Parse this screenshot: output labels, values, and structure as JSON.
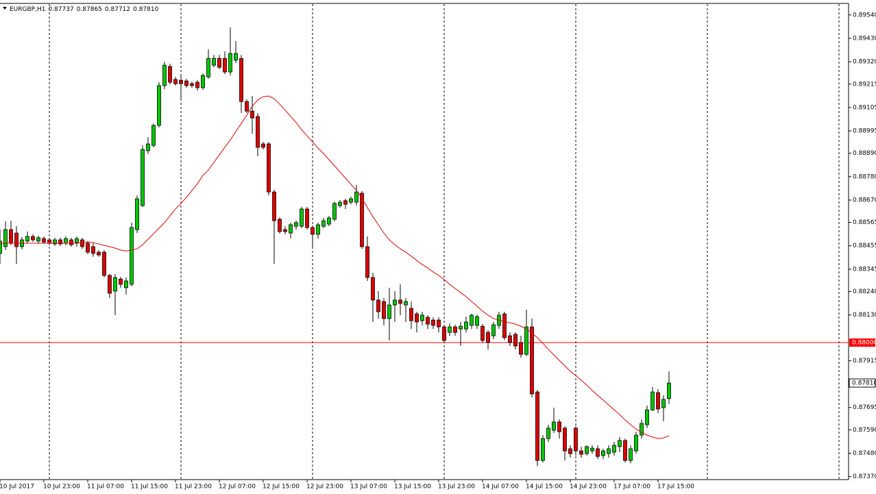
{
  "chart_data": {
    "type": "candlestick",
    "title": "EURGBP,H1",
    "header_values": [
      0.87737,
      0.87865,
      0.87712,
      {
        "value": 0.8781,
        "label": "0.87810"
      }
    ],
    "categories": [
      "10 Jul 2017",
      null,
      null,
      null,
      null,
      null,
      null,
      null,
      "10 Jul 23:00",
      null,
      null,
      null,
      null,
      null,
      null,
      null,
      "11 Jul 07:00",
      null,
      null,
      null,
      null,
      null,
      null,
      null,
      "11 Jul 15:00",
      null,
      null,
      null,
      null,
      null,
      null,
      null,
      "11 Jul 23:00",
      null,
      null,
      null,
      null,
      null,
      null,
      null,
      "12 Jul 07:00",
      null,
      null,
      null,
      null,
      null,
      null,
      null,
      "12 Jul 15:00",
      null,
      null,
      null,
      null,
      null,
      null,
      null,
      "12 Jul 23:00",
      null,
      null,
      null,
      null,
      null,
      null,
      null,
      "13 Jul 07:00",
      null,
      null,
      null,
      null,
      null,
      null,
      null,
      "13 Jul 15:00",
      null,
      null,
      null,
      null,
      null,
      null,
      null,
      "13 Jul 23:00",
      null,
      null,
      null,
      null,
      null,
      null,
      null,
      "14 Jul 07:00",
      null,
      null,
      null,
      null,
      null,
      null,
      null,
      "14 Jul 15:00",
      null,
      null,
      null,
      null,
      null,
      null,
      null,
      "14 Jul 23:00",
      null,
      null,
      null,
      null,
      null,
      null,
      null,
      "17 Jul 07:00",
      null,
      null,
      null,
      null,
      null,
      null,
      null,
      "17 Jul 15:00",
      null,
      null
    ],
    "open": [
      0.88419,
      0.88451,
      0.88531,
      0.88515,
      0.88451,
      0.88477,
      0.88499,
      0.88477,
      0.88489,
      0.88483,
      0.88464,
      0.88483,
      0.88467,
      0.88483,
      0.8847,
      0.88483,
      0.88467,
      0.88451,
      0.88425,
      0.88425,
      0.88316,
      0.88242,
      0.88299,
      0.88258,
      0.88274,
      0.88531,
      0.88644,
      0.88902,
      0.88927,
      0.89021,
      0.89208,
      0.89298,
      0.89237,
      0.89233,
      0.8923,
      0.89217,
      0.89224,
      0.89198,
      0.89249,
      0.89304,
      0.89336,
      0.89336,
      0.89272,
      0.89327,
      0.89336,
      0.89133,
      0.89088,
      0.89063,
      0.88934,
      0.88934,
      0.88708,
      0.8858,
      0.88531,
      0.88515,
      0.88547,
      0.88547,
      0.88628,
      0.88541,
      0.88509,
      0.88547,
      0.88557,
      0.8858,
      0.88644,
      0.88667,
      0.8866,
      0.8866,
      0.88702,
      0.88451,
      0.88306,
      0.882,
      0.88193,
      0.88113,
      0.88177,
      0.882,
      0.88177,
      0.88161,
      0.88135,
      0.88103,
      0.88119,
      0.88106,
      0.88106,
      0.88074,
      0.88048,
      0.88074,
      0.88064,
      0.88064,
      0.88081,
      0.88081,
      0.88077,
      0.88048,
      0.88032,
      0.88081,
      0.88135,
      0.88032,
      0.88039,
      0.88,
      0.87945,
      0.88074,
      0.87768,
      0.87446,
      0.87549,
      0.87588,
      0.87627,
      0.87598,
      0.87501,
      0.87598,
      0.87491,
      0.87478,
      0.87491,
      0.87501,
      0.87469,
      0.87478,
      0.87485,
      0.87511,
      0.8754,
      0.87446,
      0.87491,
      0.87565,
      0.87614,
      0.87684,
      0.87765,
      0.87694,
      0.87737
    ],
    "high": [
      0.88531,
      0.8857,
      0.88573,
      0.88547,
      0.88496,
      0.88522,
      0.88509,
      0.88502,
      0.88499,
      0.88493,
      0.88493,
      0.88493,
      0.88499,
      0.88493,
      0.88499,
      0.88493,
      0.88477,
      0.88467,
      0.88435,
      0.88435,
      0.88322,
      0.88322,
      0.88309,
      0.88306,
      0.88564,
      0.88692,
      0.88927,
      0.88966,
      0.8903,
      0.89224,
      0.8932,
      0.89311,
      0.89249,
      0.89256,
      0.8924,
      0.89227,
      0.89233,
      0.89265,
      0.89378,
      0.89352,
      0.89352,
      0.89369,
      0.89481,
      0.89417,
      0.89352,
      0.89143,
      0.89159,
      0.89079,
      0.88943,
      0.88943,
      0.88718,
      0.88589,
      0.88547,
      0.88564,
      0.88573,
      0.88638,
      0.88638,
      0.88551,
      0.88564,
      0.88586,
      0.88596,
      0.88663,
      0.8867,
      0.88676,
      0.88686,
      0.88741,
      0.88712,
      0.88499,
      0.88328,
      0.88242,
      0.88209,
      0.88258,
      0.88242,
      0.88274,
      0.88209,
      0.88193,
      0.88145,
      0.88145,
      0.88129,
      0.88119,
      0.88119,
      0.88084,
      0.8809,
      0.88084,
      0.88097,
      0.88122,
      0.88135,
      0.88132,
      0.88087,
      0.88058,
      0.88097,
      0.88145,
      0.88145,
      0.88048,
      0.88048,
      0.88032,
      0.88155,
      0.88113,
      0.87778,
      0.87565,
      0.87614,
      0.87694,
      0.87639,
      0.87607,
      0.87517,
      0.87607,
      0.87511,
      0.87517,
      0.87517,
      0.87517,
      0.87501,
      0.87517,
      0.87533,
      0.87556,
      0.87549,
      0.87517,
      0.87581,
      0.87639,
      0.87704,
      0.87791,
      0.87781,
      0.87752,
      0.87865
    ],
    "low": [
      0.8837,
      0.88435,
      0.88457,
      0.8837,
      0.88438,
      0.88467,
      0.88473,
      0.88467,
      0.88464,
      0.88457,
      0.88454,
      0.88454,
      0.88457,
      0.88451,
      0.88451,
      0.88441,
      0.88415,
      0.88403,
      0.88403,
      0.88306,
      0.88209,
      0.88129,
      0.88258,
      0.88225,
      0.88264,
      0.88515,
      0.88638,
      0.88886,
      0.88918,
      0.89011,
      0.89191,
      0.89214,
      0.89208,
      0.89143,
      0.89198,
      0.89198,
      0.89185,
      0.89188,
      0.8924,
      0.89294,
      0.89285,
      0.89262,
      0.89256,
      0.89314,
      0.89079,
      0.89079,
      0.88982,
      0.88876,
      0.88908,
      0.88692,
      0.8837,
      0.88512,
      0.88509,
      0.88489,
      0.88531,
      0.88538,
      0.88531,
      0.88451,
      0.88489,
      0.88538,
      0.88547,
      0.8857,
      0.88634,
      0.88628,
      0.8865,
      0.88644,
      0.88441,
      0.8829,
      0.88097,
      0.88113,
      0.88081,
      0.8801,
      0.88097,
      0.88129,
      0.88097,
      0.88064,
      0.88048,
      0.88081,
      0.88064,
      0.88064,
      0.88048,
      0.88,
      0.88032,
      0.88032,
      0.87984,
      0.88048,
      0.88064,
      0.88064,
      0.88,
      0.87968,
      0.88016,
      0.88064,
      0.88013,
      0.87984,
      0.87968,
      0.87929,
      0.87936,
      0.87742,
      0.8742,
      0.87437,
      0.87533,
      0.87575,
      0.87549,
      0.87446,
      0.87459,
      0.87469,
      0.87459,
      0.87469,
      0.87478,
      0.87453,
      0.87453,
      0.87459,
      0.87469,
      0.87485,
      0.87437,
      0.87433,
      0.87478,
      0.87549,
      0.87598,
      0.87678,
      0.87668,
      0.8763,
      0.87712
    ],
    "close": [
      0.88477,
      0.88531,
      0.88467,
      0.88451,
      0.88483,
      0.88499,
      0.88483,
      0.88493,
      0.88473,
      0.88467,
      0.88483,
      0.88464,
      0.88489,
      0.8846,
      0.88489,
      0.88451,
      0.88425,
      0.88419,
      0.88412,
      0.88316,
      0.88232,
      0.88306,
      0.88274,
      0.8829,
      0.88541,
      0.88676,
      0.88908,
      0.88934,
      0.89021,
      0.89208,
      0.89304,
      0.89224,
      0.89217,
      0.89217,
      0.89208,
      0.89208,
      0.89198,
      0.89256,
      0.89336,
      0.89336,
      0.89294,
      0.89272,
      0.89359,
      0.89359,
      0.89133,
      0.89088,
      0.89056,
      0.88918,
      0.88918,
      0.88708,
      0.88573,
      0.88522,
      0.88522,
      0.88554,
      0.88564,
      0.88628,
      0.88541,
      0.88509,
      0.88554,
      0.88573,
      0.88586,
      0.88654,
      0.8866,
      0.8865,
      0.88676,
      0.88708,
      0.88451,
      0.88306,
      0.882,
      0.88145,
      0.88113,
      0.88177,
      0.882,
      0.88184,
      0.88193,
      0.88103,
      0.88097,
      0.88129,
      0.88087,
      0.88081,
      0.88074,
      0.8801,
      0.88074,
      0.88048,
      0.88077,
      0.88097,
      0.88129,
      0.88122,
      0.8801,
      0.88,
      0.88084,
      0.88129,
      0.88023,
      0.88,
      0.87984,
      0.87945,
      0.88074,
      0.87759,
      0.87446,
      0.87549,
      0.87598,
      0.87627,
      0.87581,
      0.87491,
      0.87478,
      0.87491,
      0.87475,
      0.87511,
      0.87504,
      0.87465,
      0.87491,
      0.87501,
      0.87517,
      0.8754,
      0.87446,
      0.87501,
      0.87565,
      0.8762,
      0.87684,
      0.87768,
      0.87688,
      0.87733,
      0.8781
    ],
    "up_color": "#00c800",
    "down_color": "#e00000",
    "wick_color": "#000000",
    "ma": {
      "color": "#e00000",
      "values": [
        0.88467,
        0.88467,
        0.88467,
        0.88467,
        0.88467,
        0.88467,
        0.88467,
        0.88467,
        0.88467,
        0.88467,
        0.88467,
        0.88467,
        0.88467,
        0.88467,
        0.88467,
        0.8847,
        0.88473,
        0.8847,
        0.88464,
        0.88457,
        0.88451,
        0.88444,
        0.88435,
        0.88431,
        0.88435,
        0.88441,
        0.8846,
        0.88486,
        0.88512,
        0.88538,
        0.88564,
        0.88596,
        0.88628,
        0.88654,
        0.88683,
        0.88715,
        0.88747,
        0.88786,
        0.88811,
        0.88847,
        0.88882,
        0.88918,
        0.88953,
        0.88992,
        0.8903,
        0.89069,
        0.89111,
        0.8914,
        0.89156,
        0.89159,
        0.89146,
        0.89121,
        0.89092,
        0.89063,
        0.89034,
        0.89001,
        0.88972,
        0.88943,
        0.88914,
        0.88889,
        0.8886,
        0.88831,
        0.88802,
        0.88773,
        0.88744,
        0.88715,
        0.88679,
        0.88634,
        0.88592,
        0.88554,
        0.88515,
        0.88483,
        0.8846,
        0.88441,
        0.88425,
        0.88406,
        0.88386,
        0.88367,
        0.88351,
        0.88332,
        0.88316,
        0.88296,
        0.88274,
        0.88254,
        0.88235,
        0.88216,
        0.88193,
        0.88171,
        0.88148,
        0.88129,
        0.88113,
        0.88106,
        0.881,
        0.88093,
        0.88087,
        0.88077,
        0.88064,
        0.88045,
        0.88023,
        0.87997,
        0.87968,
        0.87942,
        0.87916,
        0.87891,
        0.87865,
        0.87845,
        0.87823,
        0.878,
        0.87775,
        0.87752,
        0.8773,
        0.87707,
        0.87684,
        0.87662,
        0.87636,
        0.87614,
        0.87594,
        0.87578,
        0.87565,
        0.87556,
        0.87549,
        0.87552,
        0.87562
      ]
    },
    "ylim": [
      0.87356,
      0.89591
    ],
    "yticks": [
      {
        "value": 0.8954,
        "label": "0.89540"
      },
      {
        "value": 0.8943,
        "label": "0.89430"
      },
      {
        "value": 0.8932,
        "label": "0.89320"
      },
      0.89215,
      0.89105,
      0.88995,
      {
        "value": 0.8889,
        "label": "0.88890"
      },
      {
        "value": 0.8878,
        "label": "0.88780"
      },
      {
        "value": 0.8867,
        "label": "0.88670"
      },
      0.88565,
      0.88455,
      0.88345,
      {
        "value": 0.8824,
        "label": "0.88240"
      },
      {
        "value": 0.8813,
        "label": "0.88130"
      },
      0.87915,
      0.87695,
      {
        "value": 0.8759,
        "label": "0.87590"
      },
      {
        "value": 0.8748,
        "label": "0.87480"
      },
      {
        "value": 0.8737,
        "label": "0.87370"
      }
    ],
    "hline": {
      "value": 0.88,
      "label": "0.88000",
      "color": "#ff0000"
    },
    "price_marker": {
      "value": 0.8781,
      "label": "0.87810"
    },
    "period_separators": true
  }
}
